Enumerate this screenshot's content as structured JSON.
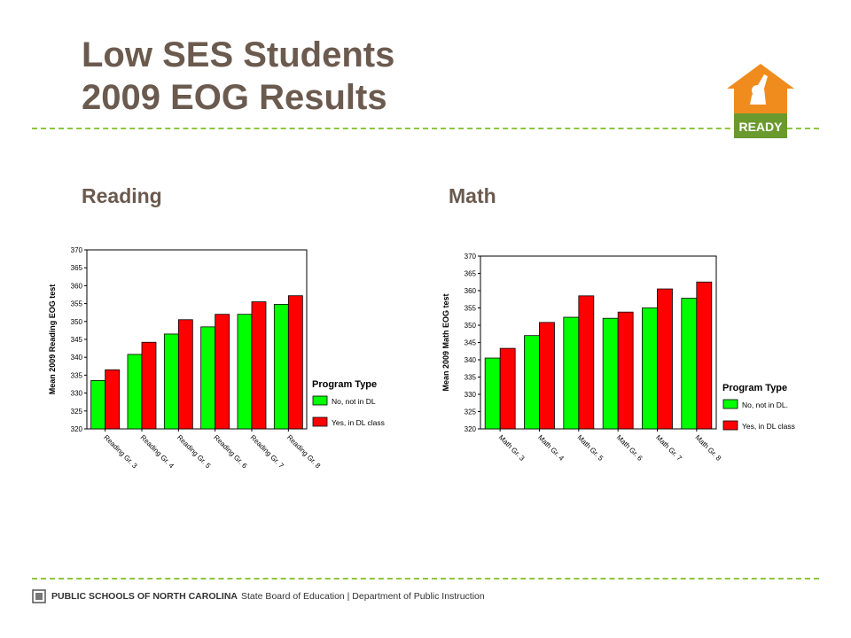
{
  "slide": {
    "title_line1": "Low SES Students",
    "title_line2": "2009 EOG Results",
    "left_heading": "Reading",
    "right_heading": "Math",
    "logo_text": "READY",
    "footer_org": "PUBLIC SCHOOLS OF NORTH CAROLINA",
    "footer_rest": "State Board of Education | Department of Public Instruction"
  },
  "colors": {
    "title": "#6b5a4e",
    "accent_green": "#8dc63f",
    "logo_orange": "#f08c1e",
    "series_no": "#00ff00",
    "series_yes": "#ff0000"
  },
  "chart_data": [
    {
      "type": "bar",
      "ylabel": "Mean 2009 Reading EOG test",
      "categories": [
        "Reading Gr. 3",
        "Reading Gr. 4",
        "Reading Gr. 5",
        "Reading Gr. 6",
        "Reading Gr. 7",
        "Reading Gr. 8"
      ],
      "legend_title": "Program Type",
      "legend_position": "right",
      "ylim": [
        320,
        370
      ],
      "yticks": [
        "320",
        "325",
        "330",
        "335",
        "340",
        "345",
        "350",
        "355",
        "360",
        "365",
        "370"
      ],
      "series": [
        {
          "name": "No, not in DL",
          "color": "#00ff00",
          "values": [
            333.5,
            340.8,
            346.5,
            348.5,
            352.0,
            354.8
          ]
        },
        {
          "name": "Yes, in DL class",
          "color": "#ff0000",
          "values": [
            336.5,
            344.2,
            350.5,
            352.0,
            355.5,
            357.2
          ]
        }
      ]
    },
    {
      "type": "bar",
      "ylabel": "Mean 2009 Math EOG test",
      "categories": [
        "Math Gr. 3",
        "Math Gr. 4",
        "Math Gr. 5",
        "Math Gr. 6",
        "Math Gr. 7",
        "Math Gr. 8"
      ],
      "legend_title": "Program Type",
      "legend_position": "right",
      "ylim": [
        320,
        370
      ],
      "yticks": [
        "320",
        "325",
        "330",
        "335",
        "340",
        "345",
        "350",
        "355",
        "360",
        "365",
        "370"
      ],
      "series": [
        {
          "name": "No, not in DL.",
          "color": "#00ff00",
          "values": [
            340.5,
            347.0,
            352.3,
            352.0,
            355.0,
            357.8
          ]
        },
        {
          "name": "Yes, in DL class",
          "color": "#ff0000",
          "values": [
            343.3,
            350.8,
            358.5,
            353.8,
            360.5,
            362.5
          ]
        }
      ]
    }
  ]
}
